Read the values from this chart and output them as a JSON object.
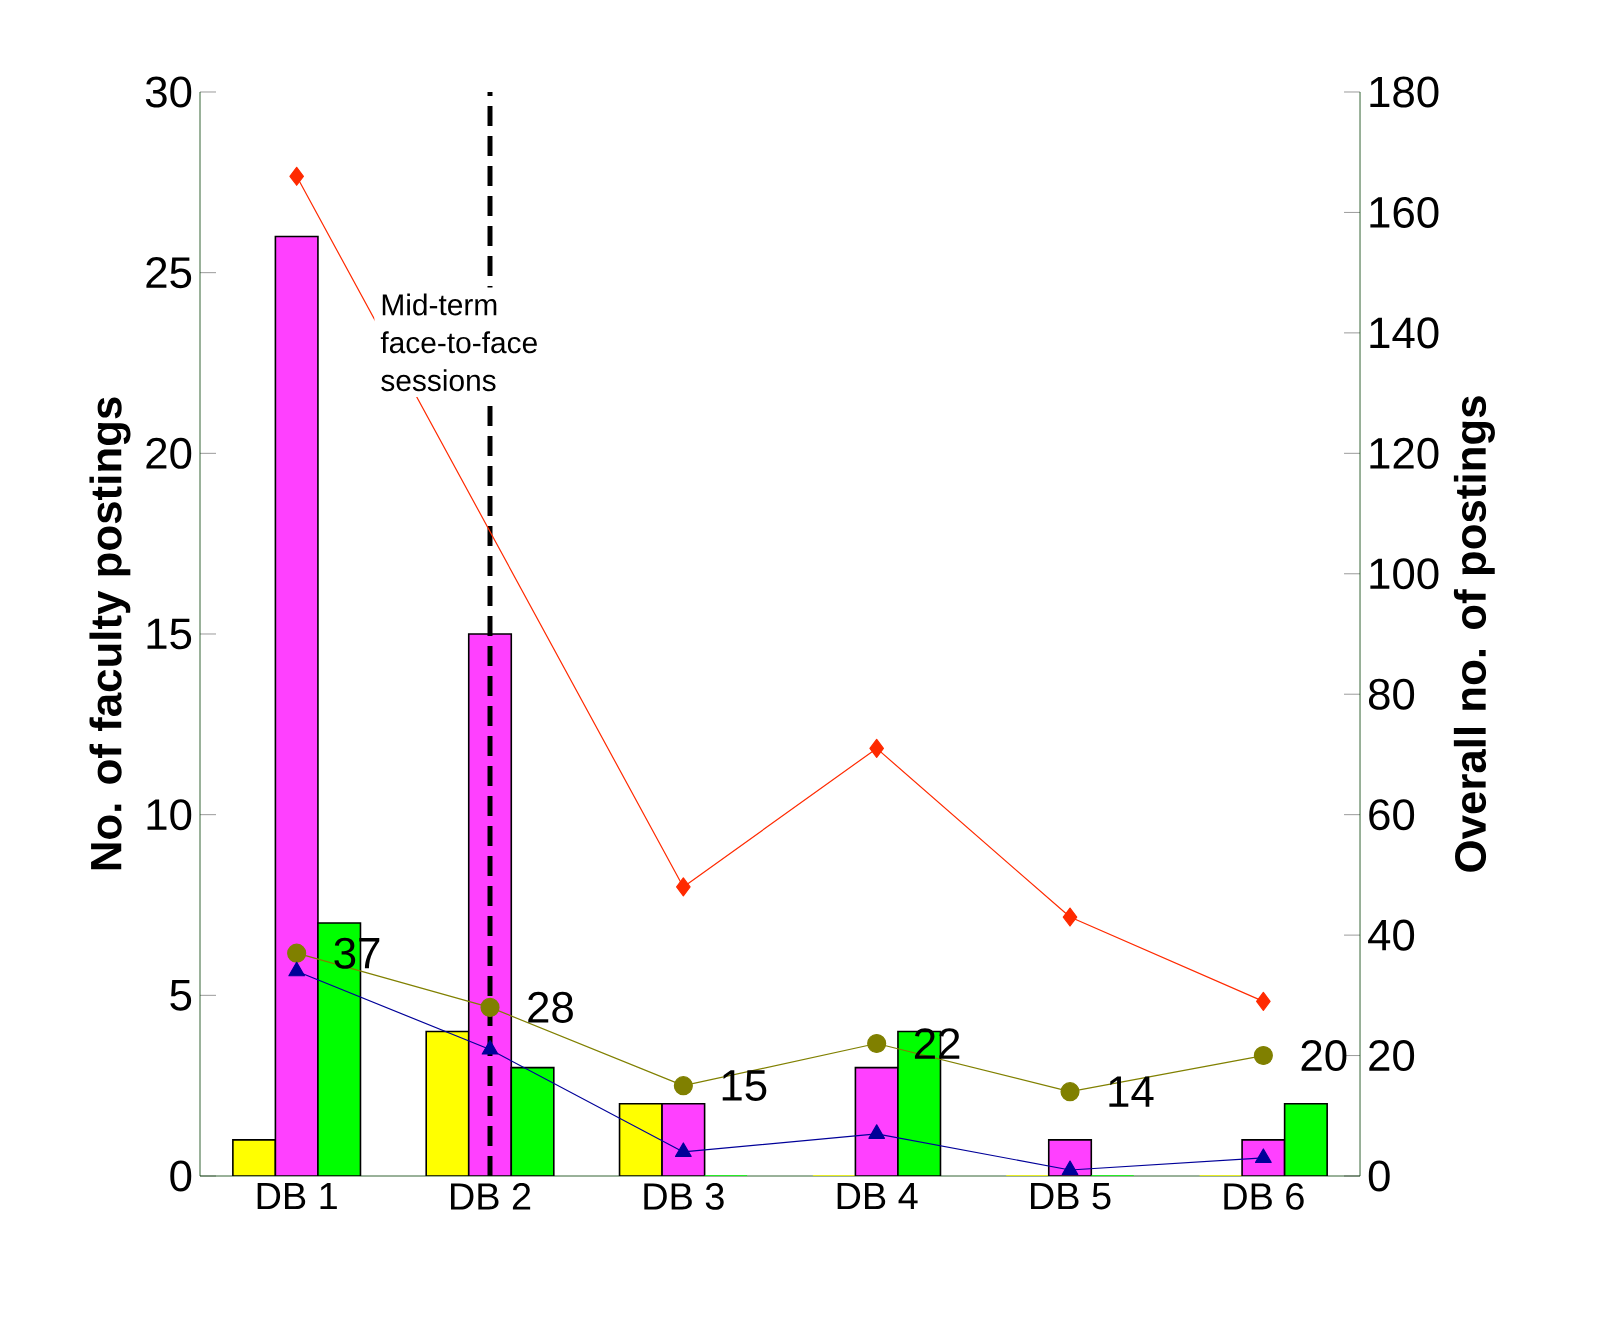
{
  "chart_data": {
    "type": "bar",
    "categories": [
      "DB 1",
      "DB 2",
      "DB 3",
      "DB 4",
      "DB 5",
      "DB 6"
    ],
    "ylabel": "No. of faculty postings",
    "y2label": "Overall no. of postings",
    "ylim": [
      0,
      30
    ],
    "yticks": [
      0,
      5,
      10,
      15,
      20,
      25,
      30
    ],
    "y2lim": [
      0,
      180
    ],
    "y2ticks": [
      0,
      20,
      40,
      60,
      80,
      100,
      120,
      140,
      160,
      180
    ],
    "series": [
      {
        "color": "#ffff00",
        "values": [
          1,
          4,
          2,
          0,
          0,
          0
        ]
      },
      {
        "color": "#ff40ff",
        "values": [
          26,
          15,
          2,
          3,
          1,
          1
        ]
      },
      {
        "color": "#00ff00",
        "values": [
          7,
          3,
          0,
          4,
          0,
          2
        ]
      },
      {
        "type": "line",
        "axis": "y2",
        "color": "#ff2a00",
        "marker": "diamond",
        "values": [
          166,
          null,
          48,
          71,
          43,
          29
        ]
      },
      {
        "type": "line",
        "axis": "y2",
        "color": "#808000",
        "marker": "circle",
        "values": [
          37,
          28,
          15,
          22,
          14,
          20
        ],
        "value_labels": [
          "37",
          "28",
          "15",
          "22",
          "14",
          "20"
        ]
      },
      {
        "type": "line",
        "axis": "y2",
        "color": "#000099",
        "marker": "triangle",
        "values": [
          34,
          21,
          4,
          7,
          1,
          3
        ]
      }
    ],
    "ref_lines": [
      {
        "axis": "x",
        "value": "DB 2",
        "color": "#000000",
        "line_style": "dashed"
      }
    ],
    "annotations": [
      "Mid-term face-to-face sessions"
    ],
    "grid": false
  }
}
